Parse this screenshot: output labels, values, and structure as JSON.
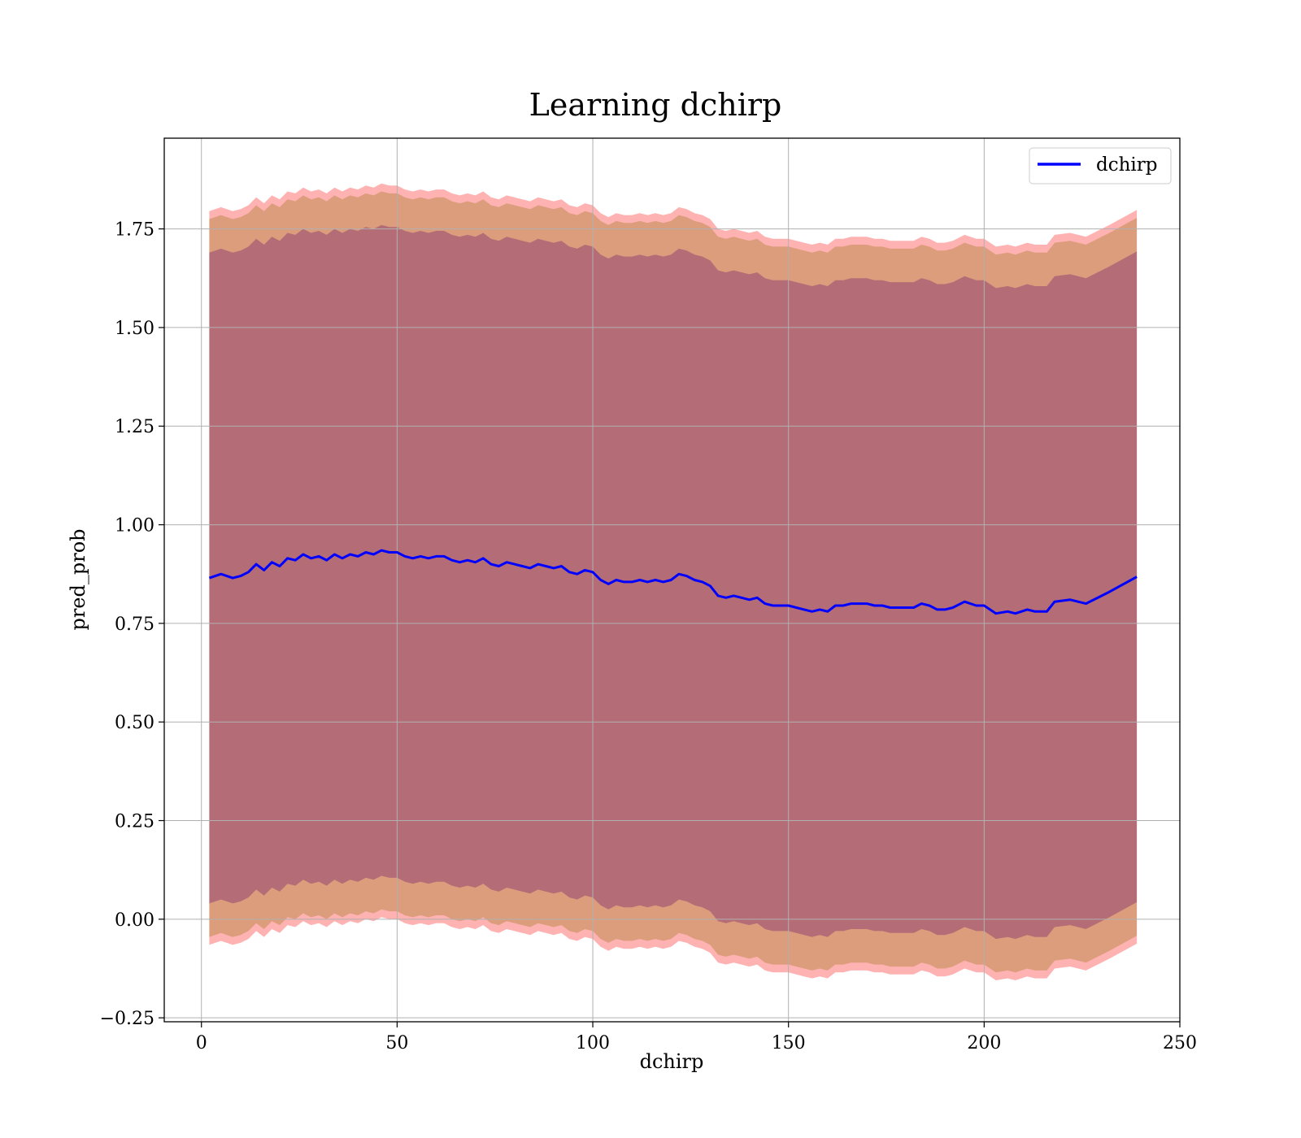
{
  "chart_data": {
    "type": "line",
    "title": "Learning dchirp",
    "xlabel": "dchirp",
    "ylabel": "pred_prob",
    "xlim": [
      -9.5,
      250
    ],
    "ylim": [
      -0.26,
      1.98
    ],
    "xticks": [
      0,
      50,
      100,
      150,
      200,
      250
    ],
    "xtick_labels": [
      "0",
      "50",
      "100",
      "150",
      "200",
      "250"
    ],
    "yticks": [
      -0.25,
      0.0,
      0.25,
      0.5,
      0.75,
      1.0,
      1.25,
      1.5,
      1.75
    ],
    "ytick_labels": [
      "−0.25",
      "0.00",
      "0.25",
      "0.50",
      "0.75",
      "1.00",
      "1.25",
      "1.50",
      "1.75"
    ],
    "grid": true,
    "legend_position": "top-right",
    "series": [
      {
        "name": "dchirp",
        "color": "#0000ff",
        "x": [
          2,
          5,
          8,
          10,
          12,
          14,
          16,
          18,
          20,
          22,
          24,
          26,
          28,
          30,
          32,
          34,
          36,
          38,
          40,
          42,
          44,
          46,
          48,
          50,
          52,
          54,
          56,
          58,
          60,
          62,
          64,
          66,
          68,
          70,
          72,
          74,
          76,
          78,
          80,
          82,
          84,
          86,
          88,
          90,
          92,
          94,
          96,
          98,
          100,
          102,
          104,
          106,
          108,
          110,
          112,
          114,
          116,
          118,
          120,
          122,
          124,
          126,
          128,
          130,
          132,
          134,
          136,
          138,
          140,
          142,
          144,
          146,
          148,
          150,
          152,
          154,
          156,
          158,
          160,
          162,
          164,
          166,
          168,
          170,
          172,
          174,
          176,
          178,
          180,
          182,
          184,
          186,
          188,
          190,
          192,
          195,
          198,
          200,
          203,
          206,
          208,
          211,
          213,
          216,
          218,
          222,
          226,
          232,
          239
        ],
        "y": [
          0.865,
          0.875,
          0.865,
          0.87,
          0.88,
          0.9,
          0.885,
          0.905,
          0.895,
          0.915,
          0.91,
          0.925,
          0.915,
          0.92,
          0.91,
          0.925,
          0.915,
          0.925,
          0.92,
          0.93,
          0.925,
          0.935,
          0.93,
          0.93,
          0.92,
          0.915,
          0.92,
          0.915,
          0.92,
          0.92,
          0.91,
          0.905,
          0.91,
          0.905,
          0.915,
          0.9,
          0.895,
          0.905,
          0.9,
          0.895,
          0.89,
          0.9,
          0.895,
          0.89,
          0.895,
          0.88,
          0.875,
          0.885,
          0.88,
          0.86,
          0.85,
          0.86,
          0.855,
          0.855,
          0.86,
          0.855,
          0.86,
          0.855,
          0.86,
          0.875,
          0.87,
          0.86,
          0.855,
          0.845,
          0.82,
          0.815,
          0.82,
          0.815,
          0.81,
          0.815,
          0.8,
          0.795,
          0.795,
          0.795,
          0.79,
          0.785,
          0.78,
          0.785,
          0.78,
          0.795,
          0.795,
          0.8,
          0.8,
          0.8,
          0.795,
          0.795,
          0.79,
          0.79,
          0.79,
          0.79,
          0.8,
          0.795,
          0.785,
          0.785,
          0.79,
          0.805,
          0.795,
          0.795,
          0.775,
          0.78,
          0.775,
          0.785,
          0.78,
          0.78,
          0.805,
          0.81,
          0.8,
          0.83,
          0.868
        ],
        "line_width": 3
      }
    ],
    "bands": [
      {
        "color": "#ff0000",
        "alpha": 0.3,
        "half_width": 0.93
      },
      {
        "color": "#8c6e00",
        "alpha": 0.3,
        "half_width": 0.91
      },
      {
        "color": "#5a006e",
        "alpha": 0.3,
        "half_width": 0.825
      }
    ]
  }
}
